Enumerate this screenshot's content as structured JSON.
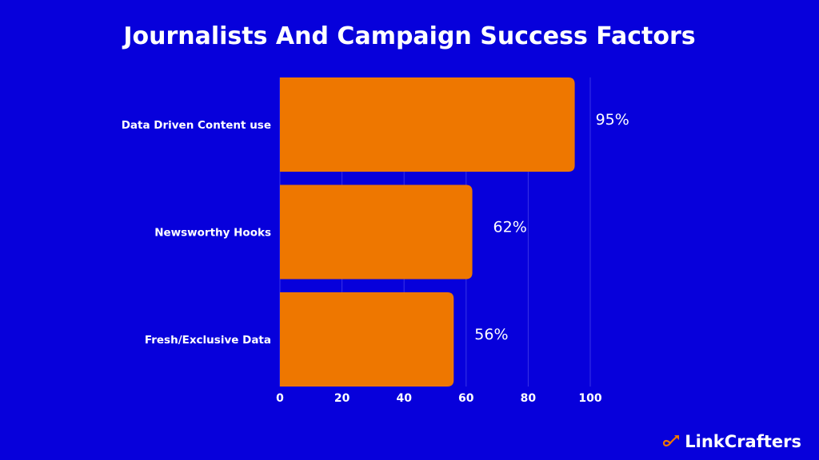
{
  "chart_data": {
    "type": "bar",
    "orientation": "horizontal",
    "title": "Journalists And Campaign Success Factors",
    "categories": [
      "Data Driven Content use",
      "Newsworthy Hooks",
      "Fresh/Exclusive Data"
    ],
    "values": [
      95,
      62,
      56
    ],
    "value_labels": [
      "95%",
      "62%",
      "56%"
    ],
    "xticks": [
      "0",
      "20",
      "40",
      "60",
      "80",
      "100"
    ],
    "xlim": [
      0,
      100
    ],
    "grid": true,
    "xlabel": "",
    "ylabel": "",
    "colors": {
      "bar": "#EE7700",
      "background": "#0700DB",
      "grid": "#3A34E6"
    }
  },
  "brand": {
    "name": "LinkCrafters",
    "icon": "infinity-arrow-icon"
  }
}
